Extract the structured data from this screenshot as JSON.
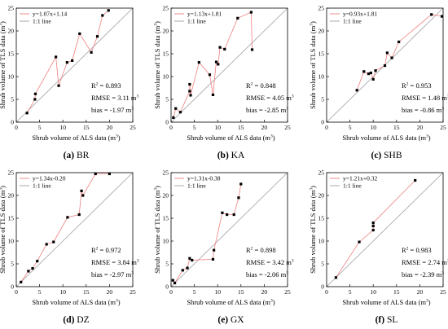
{
  "chart_data": [
    {
      "type": "scatter",
      "caption_letter": "(a)",
      "caption_site": "BR",
      "xlabel": "Shrub volume of ALS data (m",
      "ylabel": "Shrub volume of TLS data (m",
      "unit_superscript": "3",
      "xlim": [
        0,
        25
      ],
      "ylim": [
        0,
        25
      ],
      "xticks": [
        "0",
        "5",
        "10",
        "15",
        "20",
        "25"
      ],
      "yticks": [
        "0",
        "5",
        "10",
        "15",
        "20",
        "25"
      ],
      "legend": {
        "placement": "top-left",
        "fit_label": "y=1.07x+1.14",
        "identity_label": "1:1 line"
      },
      "stats": {
        "r2_label": "R",
        "r2_value": " = 0.893",
        "rmse": "RMSE = 3.11 m",
        "bias": "bias = -1.97 m"
      },
      "fit": {
        "slope": 1.07,
        "intercept": 1.14
      },
      "points": [
        [
          2.3,
          2.0
        ],
        [
          4.0,
          5.0
        ],
        [
          4.1,
          6.2
        ],
        [
          8.5,
          14.3
        ],
        [
          9.1,
          8.0
        ],
        [
          10.9,
          13.1
        ],
        [
          12.0,
          13.5
        ],
        [
          13.6,
          19.4
        ],
        [
          16.1,
          15.3
        ],
        [
          17.4,
          18.8
        ],
        [
          18.5,
          23.4
        ],
        [
          19.8,
          24.5
        ]
      ]
    },
    {
      "type": "scatter",
      "caption_letter": "(b)",
      "caption_site": "KA",
      "xlabel": "Shrub volume of ALS data (m",
      "ylabel": "Shrub volume of TLS data (m",
      "unit_superscript": "3",
      "xlim": [
        0,
        25
      ],
      "ylim": [
        0,
        25
      ],
      "xticks": [
        "0",
        "5",
        "10",
        "15",
        "20",
        "25"
      ],
      "yticks": [
        "0",
        "5",
        "10",
        "15",
        "20",
        "25"
      ],
      "legend": {
        "placement": "top-left",
        "fit_label": "y=1.13x+1.81",
        "identity_label": "1:1 line"
      },
      "stats": {
        "r2_label": "R",
        "r2_value": " = 0.848",
        "rmse": "RMSE = 4.05 m",
        "bias": "bias = -2.85 m"
      },
      "fit": {
        "slope": 1.13,
        "intercept": 1.81
      },
      "points": [
        [
          0.5,
          1.0
        ],
        [
          1.0,
          3.0
        ],
        [
          2.0,
          2.2
        ],
        [
          4.0,
          6.8
        ],
        [
          4.0,
          8.3
        ],
        [
          4.2,
          5.9
        ],
        [
          6.0,
          13.1
        ],
        [
          8.3,
          10.4
        ],
        [
          9.7,
          13.2
        ],
        [
          10.1,
          12.7
        ],
        [
          10.5,
          16.4
        ],
        [
          11.5,
          16.0
        ],
        [
          14.3,
          22.8
        ],
        [
          17.2,
          24.1
        ],
        [
          17.4,
          15.9
        ],
        [
          9.0,
          6.0
        ]
      ]
    },
    {
      "type": "scatter",
      "caption_letter": "(c)",
      "caption_site": "SHB",
      "xlabel": "Shrub volume of ALS data (m",
      "ylabel": "Shrub volume of TLS data (m",
      "unit_superscript": "3",
      "xlim": [
        0,
        25
      ],
      "ylim": [
        0,
        25
      ],
      "xticks": [
        "0",
        "5",
        "10",
        "15",
        "20",
        "25"
      ],
      "yticks": [
        "0",
        "5",
        "10",
        "15",
        "20",
        "25"
      ],
      "legend": {
        "placement": "top-left",
        "fit_label": "y=0.93x+1.81",
        "identity_label": "1:1 line"
      },
      "stats": {
        "r2_label": "R",
        "r2_value": " = 0.953",
        "rmse": "RMSE = 1.48 m",
        "bias": "bias = -0.86 m"
      },
      "fit": {
        "slope": 0.93,
        "intercept": 1.81
      },
      "points": [
        [
          6.5,
          7.0
        ],
        [
          8.0,
          11.1
        ],
        [
          9.0,
          10.6
        ],
        [
          9.5,
          10.8
        ],
        [
          10.0,
          9.4
        ],
        [
          10.5,
          11.3
        ],
        [
          12.5,
          12.4
        ],
        [
          13.0,
          15.2
        ],
        [
          14.0,
          14.1
        ],
        [
          15.5,
          17.6
        ],
        [
          22.5,
          23.6
        ],
        [
          25.0,
          23.2
        ]
      ]
    },
    {
      "type": "scatter",
      "caption_letter": "(d)",
      "caption_site": "DZ",
      "xlabel": "Shrub volume of ALS data (m",
      "ylabel": "Shrub volume of TLS data (m",
      "unit_superscript": "3",
      "xlim": [
        0,
        25
      ],
      "ylim": [
        0,
        25
      ],
      "xticks": [
        "0",
        "5",
        "10",
        "15",
        "20",
        "25"
      ],
      "yticks": [
        "0",
        "5",
        "10",
        "15",
        "20",
        "25"
      ],
      "legend": {
        "placement": "top-left",
        "fit_label": "y=1.34x-0.20",
        "identity_label": "1:1 line"
      },
      "stats": {
        "r2_label": "R",
        "r2_value": " = 0.972",
        "rmse": "RMSE = 3.84 m",
        "bias": "bias = -2.97 m"
      },
      "fit": {
        "slope": 1.34,
        "intercept": -0.2
      },
      "points": [
        [
          1.0,
          1.0
        ],
        [
          2.6,
          3.4
        ],
        [
          3.5,
          4.0
        ],
        [
          4.5,
          5.6
        ],
        [
          6.5,
          9.3
        ],
        [
          8.0,
          9.8
        ],
        [
          11.0,
          15.2
        ],
        [
          13.5,
          15.8
        ],
        [
          14.0,
          21.0
        ],
        [
          14.3,
          20.0
        ],
        [
          17.0,
          24.8
        ],
        [
          20.0,
          24.8
        ]
      ]
    },
    {
      "type": "scatter",
      "caption_letter": "(e)",
      "caption_site": "GX",
      "xlabel": "Shrub volume of ALS data (m",
      "ylabel": "Shrub volume of TLS data (m",
      "unit_superscript": "3",
      "xlim": [
        0,
        25
      ],
      "ylim": [
        0,
        25
      ],
      "xticks": [
        "0",
        "5",
        "10",
        "15",
        "20",
        "25"
      ],
      "yticks": [
        "0",
        "5",
        "10",
        "15",
        "20",
        "25"
      ],
      "legend": {
        "placement": "top-left",
        "fit_label": "y=1.31x-0.38",
        "identity_label": "1:1 line"
      },
      "stats": {
        "r2_label": "R",
        "r2_value": " = 0.898",
        "rmse": "RMSE = 3.42 m",
        "bias": "bias = -2.06 m"
      },
      "fit": {
        "slope": 1.31,
        "intercept": -0.38
      },
      "points": [
        [
          0.4,
          1.4
        ],
        [
          0.8,
          0.8
        ],
        [
          2.5,
          3.6
        ],
        [
          3.5,
          4.1
        ],
        [
          4.0,
          6.2
        ],
        [
          4.5,
          5.8
        ],
        [
          9.0,
          6.0
        ],
        [
          9.2,
          8.0
        ],
        [
          11.0,
          16.2
        ],
        [
          12.0,
          15.8
        ],
        [
          13.5,
          15.8
        ],
        [
          14.5,
          19.5
        ],
        [
          15.0,
          22.5
        ]
      ]
    },
    {
      "type": "scatter",
      "caption_letter": "(f)",
      "caption_site": "SL",
      "xlabel": "Shrub volume of ALS data (m",
      "ylabel": "Shrub volume of TLS data (m",
      "unit_superscript": "3",
      "xlim": [
        0,
        25
      ],
      "ylim": [
        0,
        25
      ],
      "xticks": [
        "0",
        "5",
        "10",
        "15",
        "20",
        "25"
      ],
      "yticks": [
        "0",
        "5",
        "10",
        "15",
        "20",
        "25"
      ],
      "legend": {
        "placement": "top-left",
        "fit_label": "y=1.21x+0.32",
        "identity_label": "1:1 line"
      },
      "stats": {
        "r2_label": "R",
        "r2_value": " = 0.983",
        "rmse": "RMSE = 2.74 m",
        "bias": "bias = -2.39 m"
      },
      "fit": {
        "slope": 1.21,
        "intercept": 0.32
      },
      "points": [
        [
          2.0,
          2.0
        ],
        [
          7.0,
          9.8
        ],
        [
          10.0,
          12.4
        ],
        [
          10.0,
          13.3
        ],
        [
          10.0,
          14.0
        ],
        [
          19.0,
          23.3
        ]
      ]
    }
  ],
  "colors": {
    "points": "#000000",
    "fit_line": "#f08080",
    "identity_line": "#a0a0a0",
    "axes": "#000000"
  }
}
